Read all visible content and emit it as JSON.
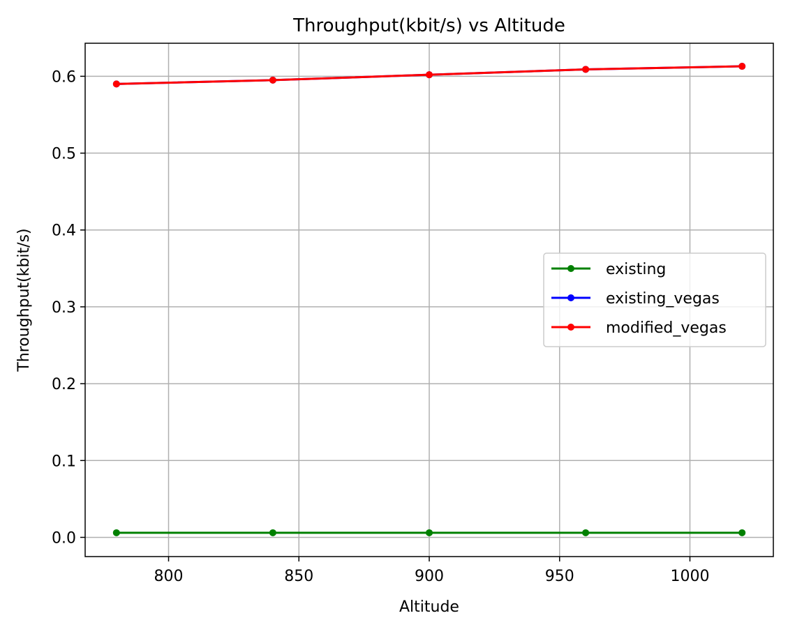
{
  "chart_data": {
    "type": "line",
    "title": "Throughput(kbit/s) vs Altitude",
    "xlabel": "Altitude",
    "ylabel": "Throughput(kbit/s)",
    "x": [
      780,
      840,
      900,
      960,
      1020
    ],
    "xlim": [
      768,
      1032
    ],
    "ylim": [
      -0.025,
      0.643
    ],
    "xticks": [
      800,
      850,
      900,
      950,
      1000
    ],
    "yticks": [
      0.0,
      0.1,
      0.2,
      0.3,
      0.4,
      0.5,
      0.6
    ],
    "xtick_labels": [
      "800",
      "850",
      "900",
      "950",
      "1000"
    ],
    "ytick_labels": [
      "0.0",
      "0.1",
      "0.2",
      "0.3",
      "0.4",
      "0.5",
      "0.6"
    ],
    "grid": true,
    "legend_position": "center-right",
    "series": [
      {
        "name": "existing",
        "color": "#008000",
        "values": [
          0.006,
          0.006,
          0.006,
          0.006,
          0.006
        ]
      },
      {
        "name": "existing_vegas",
        "color": "#0000ff",
        "values": [
          0.59,
          0.595,
          0.602,
          0.609,
          0.613
        ]
      },
      {
        "name": "modified_vegas",
        "color": "#ff0000",
        "values": [
          0.59,
          0.595,
          0.602,
          0.609,
          0.613
        ]
      }
    ]
  }
}
